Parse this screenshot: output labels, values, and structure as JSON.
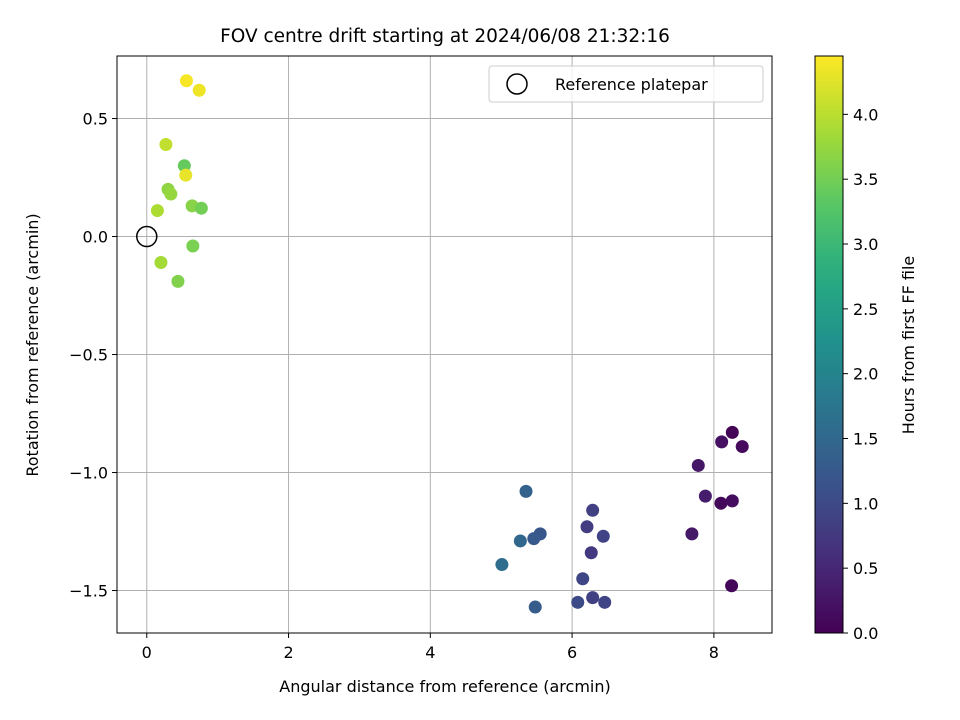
{
  "chart_data": {
    "type": "scatter",
    "title": "FOV centre drift starting at 2024/06/08 21:32:16",
    "xlabel": "Angular distance from reference (arcmin)",
    "ylabel": "Rotation from reference (arcmin)",
    "xlim": [
      -0.42,
      8.82
    ],
    "ylim": [
      -1.68,
      0.765
    ],
    "xticks": [
      0,
      2,
      4,
      6,
      8
    ],
    "xtick_labels": [
      "0",
      "2",
      "4",
      "6",
      "8"
    ],
    "yticks": [
      0.5,
      0.0,
      -0.5,
      -1.0,
      -1.5
    ],
    "ytick_labels": [
      "0.5",
      "0.0",
      "−0.5",
      "−1.0",
      "−1.5"
    ],
    "grid": true,
    "legend": {
      "position": "upper right",
      "entries": [
        "Reference platepar"
      ]
    },
    "reference": {
      "x": 0.0,
      "y": 0.0,
      "label": "Reference platepar"
    },
    "colorbar": {
      "label": "Hours from first FF file",
      "min": 0.0,
      "max": 4.45,
      "colormap": "viridis",
      "ticks": [
        0.0,
        0.5,
        1.0,
        1.5,
        2.0,
        2.5,
        3.0,
        3.5,
        4.0
      ],
      "tick_labels": [
        "0.0",
        "0.5",
        "1.0",
        "1.5",
        "2.0",
        "2.5",
        "3.0",
        "3.5",
        "4.0"
      ]
    },
    "points": [
      {
        "x": 8.26,
        "y": -0.83,
        "hours": 0.05
      },
      {
        "x": 8.4,
        "y": -0.89,
        "hours": 0.12
      },
      {
        "x": 8.11,
        "y": -0.87,
        "hours": 0.2
      },
      {
        "x": 7.78,
        "y": -0.97,
        "hours": 0.28
      },
      {
        "x": 7.88,
        "y": -1.1,
        "hours": 0.35
      },
      {
        "x": 8.1,
        "y": -1.13,
        "hours": 0.1
      },
      {
        "x": 8.26,
        "y": -1.12,
        "hours": 0.15
      },
      {
        "x": 7.69,
        "y": -1.26,
        "hours": 0.3
      },
      {
        "x": 8.25,
        "y": -1.48,
        "hours": 0.08
      },
      {
        "x": 6.29,
        "y": -1.16,
        "hours": 0.85
      },
      {
        "x": 6.21,
        "y": -1.23,
        "hours": 0.8
      },
      {
        "x": 6.44,
        "y": -1.27,
        "hours": 0.9
      },
      {
        "x": 6.27,
        "y": -1.34,
        "hours": 0.75
      },
      {
        "x": 6.15,
        "y": -1.45,
        "hours": 0.95
      },
      {
        "x": 6.29,
        "y": -1.53,
        "hours": 0.85
      },
      {
        "x": 6.46,
        "y": -1.55,
        "hours": 0.9
      },
      {
        "x": 6.08,
        "y": -1.55,
        "hours": 1.0
      },
      {
        "x": 5.35,
        "y": -1.08,
        "hours": 1.4
      },
      {
        "x": 5.55,
        "y": -1.26,
        "hours": 1.2
      },
      {
        "x": 5.46,
        "y": -1.28,
        "hours": 1.25
      },
      {
        "x": 5.27,
        "y": -1.29,
        "hours": 1.5
      },
      {
        "x": 5.01,
        "y": -1.39,
        "hours": 1.6
      },
      {
        "x": 5.48,
        "y": -1.57,
        "hours": 1.3
      },
      {
        "x": 0.56,
        "y": 0.66,
        "hours": 4.4
      },
      {
        "x": 0.74,
        "y": 0.62,
        "hours": 4.35
      },
      {
        "x": 0.27,
        "y": 0.39,
        "hours": 4.05
      },
      {
        "x": 0.53,
        "y": 0.3,
        "hours": 3.4
      },
      {
        "x": 0.55,
        "y": 0.26,
        "hours": 4.3
      },
      {
        "x": 0.3,
        "y": 0.2,
        "hours": 3.7
      },
      {
        "x": 0.34,
        "y": 0.18,
        "hours": 3.75
      },
      {
        "x": 0.64,
        "y": 0.13,
        "hours": 3.65
      },
      {
        "x": 0.77,
        "y": 0.12,
        "hours": 3.5
      },
      {
        "x": 0.15,
        "y": 0.11,
        "hours": 3.9
      },
      {
        "x": 0.65,
        "y": -0.04,
        "hours": 3.55
      },
      {
        "x": 0.2,
        "y": -0.11,
        "hours": 3.85
      },
      {
        "x": 0.44,
        "y": -0.19,
        "hours": 3.6
      }
    ]
  }
}
